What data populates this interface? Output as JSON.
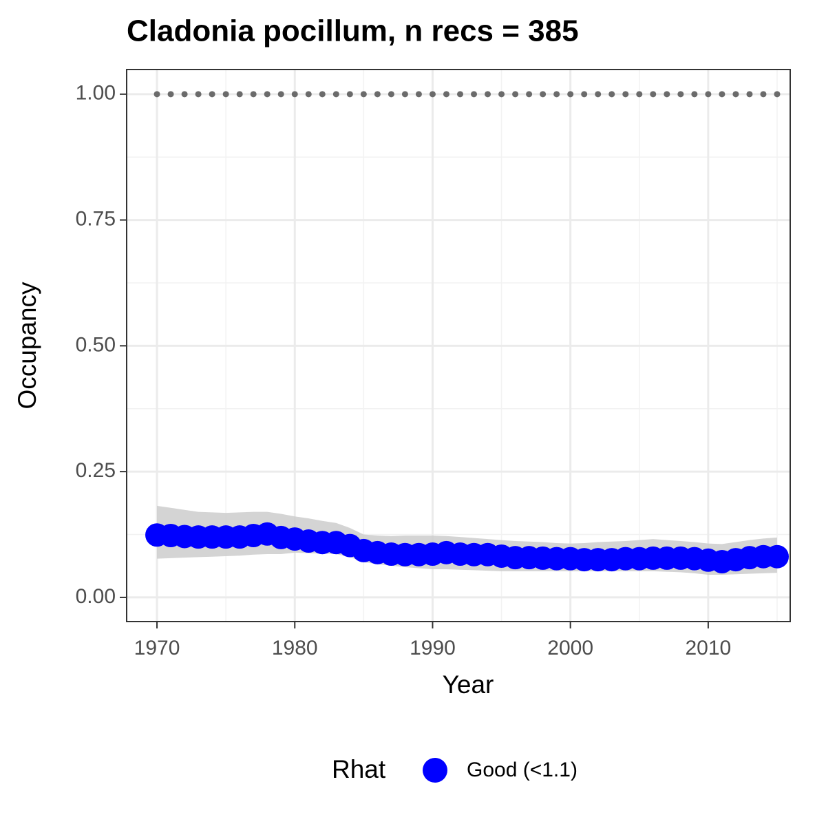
{
  "chart_data": {
    "type": "scatter",
    "title": "Cladonia pocillum, n recs = 385",
    "x_label": "Year",
    "y_label": "Occupancy",
    "x": [
      1970,
      1971,
      1972,
      1973,
      1974,
      1975,
      1976,
      1977,
      1978,
      1979,
      1980,
      1981,
      1982,
      1983,
      1984,
      1985,
      1986,
      1987,
      1988,
      1989,
      1990,
      1991,
      1992,
      1993,
      1994,
      1995,
      1996,
      1997,
      1998,
      1999,
      2000,
      2001,
      2002,
      2003,
      2004,
      2005,
      2006,
      2007,
      2008,
      2009,
      2010,
      2011,
      2012,
      2013,
      2014,
      2015
    ],
    "series": [
      {
        "name": "Good (<1.1)",
        "color": "#0000ff",
        "ribbon_color": "#cccccc",
        "values": [
          0.124,
          0.123,
          0.121,
          0.12,
          0.12,
          0.12,
          0.12,
          0.123,
          0.126,
          0.119,
          0.116,
          0.112,
          0.109,
          0.109,
          0.103,
          0.093,
          0.089,
          0.086,
          0.085,
          0.085,
          0.086,
          0.089,
          0.086,
          0.085,
          0.085,
          0.082,
          0.079,
          0.079,
          0.078,
          0.077,
          0.077,
          0.075,
          0.075,
          0.075,
          0.077,
          0.077,
          0.078,
          0.078,
          0.078,
          0.077,
          0.074,
          0.071,
          0.075,
          0.079,
          0.081,
          0.081
        ],
        "upper": [
          0.182,
          0.178,
          0.174,
          0.17,
          0.169,
          0.168,
          0.169,
          0.17,
          0.17,
          0.166,
          0.161,
          0.157,
          0.152,
          0.148,
          0.138,
          0.125,
          0.123,
          0.122,
          0.123,
          0.123,
          0.123,
          0.122,
          0.12,
          0.118,
          0.116,
          0.114,
          0.112,
          0.111,
          0.11,
          0.108,
          0.107,
          0.108,
          0.11,
          0.111,
          0.112,
          0.114,
          0.116,
          0.114,
          0.112,
          0.11,
          0.107,
          0.106,
          0.11,
          0.114,
          0.117,
          0.119
        ],
        "lower": [
          0.077,
          0.078,
          0.079,
          0.08,
          0.081,
          0.082,
          0.083,
          0.085,
          0.086,
          0.086,
          0.089,
          0.088,
          0.087,
          0.086,
          0.08,
          0.07,
          0.066,
          0.063,
          0.06,
          0.058,
          0.056,
          0.056,
          0.055,
          0.054,
          0.053,
          0.052,
          0.052,
          0.052,
          0.052,
          0.052,
          0.052,
          0.052,
          0.052,
          0.052,
          0.052,
          0.052,
          0.052,
          0.051,
          0.05,
          0.048,
          0.045,
          0.045,
          0.046,
          0.047,
          0.048,
          0.049
        ]
      }
    ],
    "reference": {
      "color": "#6b6b6b",
      "values": [
        1,
        1,
        1,
        1,
        1,
        1,
        1,
        1,
        1,
        1,
        1,
        1,
        1,
        1,
        1,
        1,
        1,
        1,
        1,
        1,
        1,
        1,
        1,
        1,
        1,
        1,
        1,
        1,
        1,
        1,
        1,
        1,
        1,
        1,
        1,
        1,
        1,
        1,
        1,
        1,
        1,
        1,
        1,
        1,
        1,
        1
      ]
    },
    "xlim": [
      1967.8,
      2015.95
    ],
    "ylim": [
      -0.048,
      1.049
    ],
    "xticks": [
      1970,
      1980,
      1990,
      2000,
      2010
    ],
    "xminorticks": [
      1975,
      1985,
      1995,
      2005,
      2015
    ],
    "yticks": [
      {
        "value": 0,
        "label": "0.00"
      },
      {
        "value": 0.25,
        "label": "0.25"
      },
      {
        "value": 0.5,
        "label": "0.50"
      },
      {
        "value": 0.75,
        "label": "0.75"
      },
      {
        "value": 1,
        "label": "1.00"
      }
    ],
    "yminorticks": [
      0.125,
      0.375,
      0.625,
      0.875
    ],
    "grid": true,
    "legend_title": "Rhat",
    "legend_position": "bottom"
  }
}
